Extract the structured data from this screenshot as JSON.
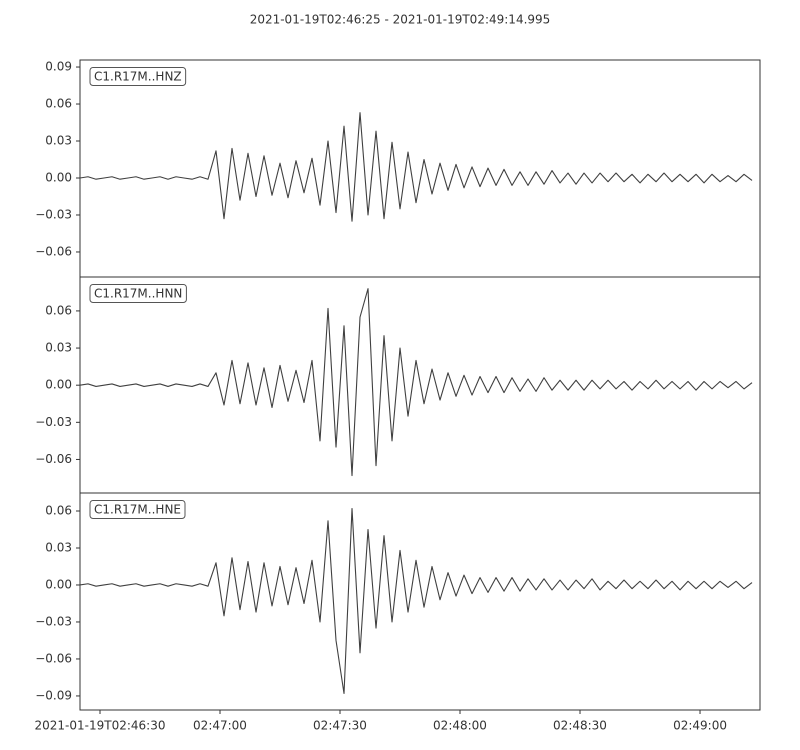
{
  "title": "2021-01-19T02:46:25  -  2021-01-19T02:49:14.995",
  "chart_data": [
    {
      "type": "line",
      "title": "C1.R17M..HNZ",
      "color": "#404040",
      "xlim": [
        0,
        169.995
      ],
      "ylim": [
        -0.0803,
        0.0957
      ],
      "yticks": [
        0.09,
        0.06,
        0.03,
        {
          "value": 0,
          "label": "0.00"
        },
        {
          "value": -0.03,
          "label": "−0.03"
        },
        {
          "value": -0.06,
          "label": "−0.06"
        }
      ],
      "x": [
        0,
        2,
        4,
        6,
        8,
        10,
        12,
        14,
        16,
        18,
        20,
        22,
        24,
        26,
        28,
        30,
        32,
        34,
        36,
        38,
        40,
        42,
        44,
        46,
        48,
        50,
        52,
        54,
        56,
        58,
        60,
        62,
        64,
        66,
        68,
        70,
        72,
        74,
        76,
        78,
        80,
        82,
        84,
        86,
        88,
        90,
        92,
        94,
        96,
        98,
        100,
        102,
        104,
        106,
        108,
        110,
        112,
        114,
        116,
        118,
        120,
        122,
        124,
        126,
        128,
        130,
        132,
        134,
        136,
        138,
        140,
        142,
        144,
        146,
        148,
        150,
        152,
        154,
        156,
        158,
        160,
        162,
        164,
        166,
        168
      ],
      "values": [
        0.0,
        0.001,
        -0.001,
        0.0,
        0.001,
        -0.001,
        0.0,
        0.001,
        -0.001,
        0.0,
        0.001,
        -0.001,
        0.001,
        0.0,
        -0.001,
        0.001,
        -0.001,
        0.022,
        -0.033,
        0.024,
        -0.018,
        0.02,
        -0.015,
        0.018,
        -0.014,
        0.012,
        -0.016,
        0.014,
        -0.012,
        0.016,
        -0.022,
        0.03,
        -0.028,
        0.042,
        -0.035,
        0.053,
        -0.03,
        0.038,
        -0.033,
        0.029,
        -0.025,
        0.021,
        -0.02,
        0.015,
        -0.013,
        0.012,
        -0.01,
        0.011,
        -0.008,
        0.009,
        -0.007,
        0.008,
        -0.006,
        0.007,
        -0.006,
        0.005,
        -0.006,
        0.005,
        -0.005,
        0.006,
        -0.004,
        0.004,
        -0.005,
        0.004,
        -0.004,
        0.004,
        -0.003,
        0.004,
        -0.003,
        0.003,
        -0.004,
        0.003,
        -0.003,
        0.004,
        -0.003,
        0.003,
        -0.003,
        0.003,
        -0.004,
        0.003,
        -0.003,
        0.002,
        -0.003,
        0.003,
        -0.002
      ]
    },
    {
      "type": "line",
      "title": "C1.R17M..HNN",
      "color": "#404040",
      "xlim": [
        0,
        169.995
      ],
      "ylim": [
        -0.0871,
        0.0874
      ],
      "yticks": [
        0.06,
        0.03,
        {
          "value": 0,
          "label": "0.00"
        },
        {
          "value": -0.03,
          "label": "−0.03"
        },
        {
          "value": -0.06,
          "label": "−0.06"
        }
      ],
      "x": [
        0,
        2,
        4,
        6,
        8,
        10,
        12,
        14,
        16,
        18,
        20,
        22,
        24,
        26,
        28,
        30,
        32,
        34,
        36,
        38,
        40,
        42,
        44,
        46,
        48,
        50,
        52,
        54,
        56,
        58,
        60,
        62,
        64,
        66,
        68,
        70,
        72,
        74,
        76,
        78,
        80,
        82,
        84,
        86,
        88,
        90,
        92,
        94,
        96,
        98,
        100,
        102,
        104,
        106,
        108,
        110,
        112,
        114,
        116,
        118,
        120,
        122,
        124,
        126,
        128,
        130,
        132,
        134,
        136,
        138,
        140,
        142,
        144,
        146,
        148,
        150,
        152,
        154,
        156,
        158,
        160,
        162,
        164,
        166,
        168
      ],
      "values": [
        0.0,
        0.001,
        -0.001,
        0.0,
        0.001,
        -0.001,
        0.0,
        0.001,
        -0.001,
        0.0,
        0.001,
        -0.001,
        0.001,
        0.0,
        -0.001,
        0.001,
        -0.001,
        0.01,
        -0.016,
        0.02,
        -0.015,
        0.018,
        -0.016,
        0.014,
        -0.018,
        0.016,
        -0.013,
        0.012,
        -0.014,
        0.02,
        -0.045,
        0.062,
        -0.05,
        0.048,
        -0.073,
        0.055,
        0.078,
        -0.065,
        0.04,
        -0.045,
        0.03,
        -0.025,
        0.02,
        -0.015,
        0.013,
        -0.012,
        0.01,
        -0.009,
        0.008,
        -0.008,
        0.007,
        -0.006,
        0.007,
        -0.006,
        0.006,
        -0.005,
        0.005,
        -0.005,
        0.006,
        -0.004,
        0.004,
        -0.004,
        0.004,
        -0.004,
        0.004,
        -0.003,
        0.004,
        -0.003,
        0.003,
        -0.004,
        0.003,
        -0.003,
        0.004,
        -0.003,
        0.003,
        -0.003,
        0.003,
        -0.004,
        0.003,
        -0.003,
        0.003,
        -0.002,
        0.003,
        -0.003,
        0.002
      ]
    },
    {
      "type": "line",
      "title": "C1.R17M..HNE",
      "color": "#404040",
      "xlim": [
        0,
        169.995
      ],
      "ylim": [
        -0.1014,
        0.0746
      ],
      "yticks": [
        0.06,
        0.03,
        {
          "value": 0,
          "label": "0.00"
        },
        {
          "value": -0.03,
          "label": "−0.03"
        },
        {
          "value": -0.06,
          "label": "−0.06"
        },
        {
          "value": -0.09,
          "label": "−0.09"
        }
      ],
      "xticks": [
        {
          "value": 5,
          "label": "2021-01-19T02:46:30"
        },
        {
          "value": 35,
          "label": "02:47:00"
        },
        {
          "value": 65,
          "label": "02:47:30"
        },
        {
          "value": 95,
          "label": "02:48:00"
        },
        {
          "value": 125,
          "label": "02:48:30"
        },
        {
          "value": 155,
          "label": "02:49:00"
        }
      ],
      "x": [
        0,
        2,
        4,
        6,
        8,
        10,
        12,
        14,
        16,
        18,
        20,
        22,
        24,
        26,
        28,
        30,
        32,
        34,
        36,
        38,
        40,
        42,
        44,
        46,
        48,
        50,
        52,
        54,
        56,
        58,
        60,
        62,
        64,
        66,
        68,
        70,
        72,
        74,
        76,
        78,
        80,
        82,
        84,
        86,
        88,
        90,
        92,
        94,
        96,
        98,
        100,
        102,
        104,
        106,
        108,
        110,
        112,
        114,
        116,
        118,
        120,
        122,
        124,
        126,
        128,
        130,
        132,
        134,
        136,
        138,
        140,
        142,
        144,
        146,
        148,
        150,
        152,
        154,
        156,
        158,
        160,
        162,
        164,
        166,
        168
      ],
      "values": [
        0.0,
        0.001,
        -0.001,
        0.0,
        0.001,
        -0.001,
        0.0,
        0.001,
        -0.001,
        0.0,
        0.001,
        -0.001,
        0.001,
        0.0,
        -0.001,
        0.001,
        -0.001,
        0.018,
        -0.025,
        0.022,
        -0.02,
        0.019,
        -0.022,
        0.018,
        -0.017,
        0.015,
        -0.016,
        0.014,
        -0.015,
        0.02,
        -0.03,
        0.052,
        -0.045,
        -0.088,
        0.062,
        -0.055,
        0.045,
        -0.035,
        0.04,
        -0.03,
        0.028,
        -0.022,
        0.02,
        -0.018,
        0.015,
        -0.012,
        0.01,
        -0.009,
        0.008,
        -0.007,
        0.006,
        -0.006,
        0.006,
        -0.005,
        0.006,
        -0.005,
        0.005,
        -0.004,
        0.005,
        -0.004,
        0.004,
        -0.004,
        0.004,
        -0.003,
        0.005,
        -0.004,
        0.003,
        -0.003,
        0.004,
        -0.003,
        0.003,
        -0.003,
        0.004,
        -0.003,
        0.003,
        -0.004,
        0.003,
        -0.003,
        0.003,
        -0.003,
        0.003,
        -0.002,
        0.003,
        -0.003,
        0.002
      ]
    }
  ]
}
